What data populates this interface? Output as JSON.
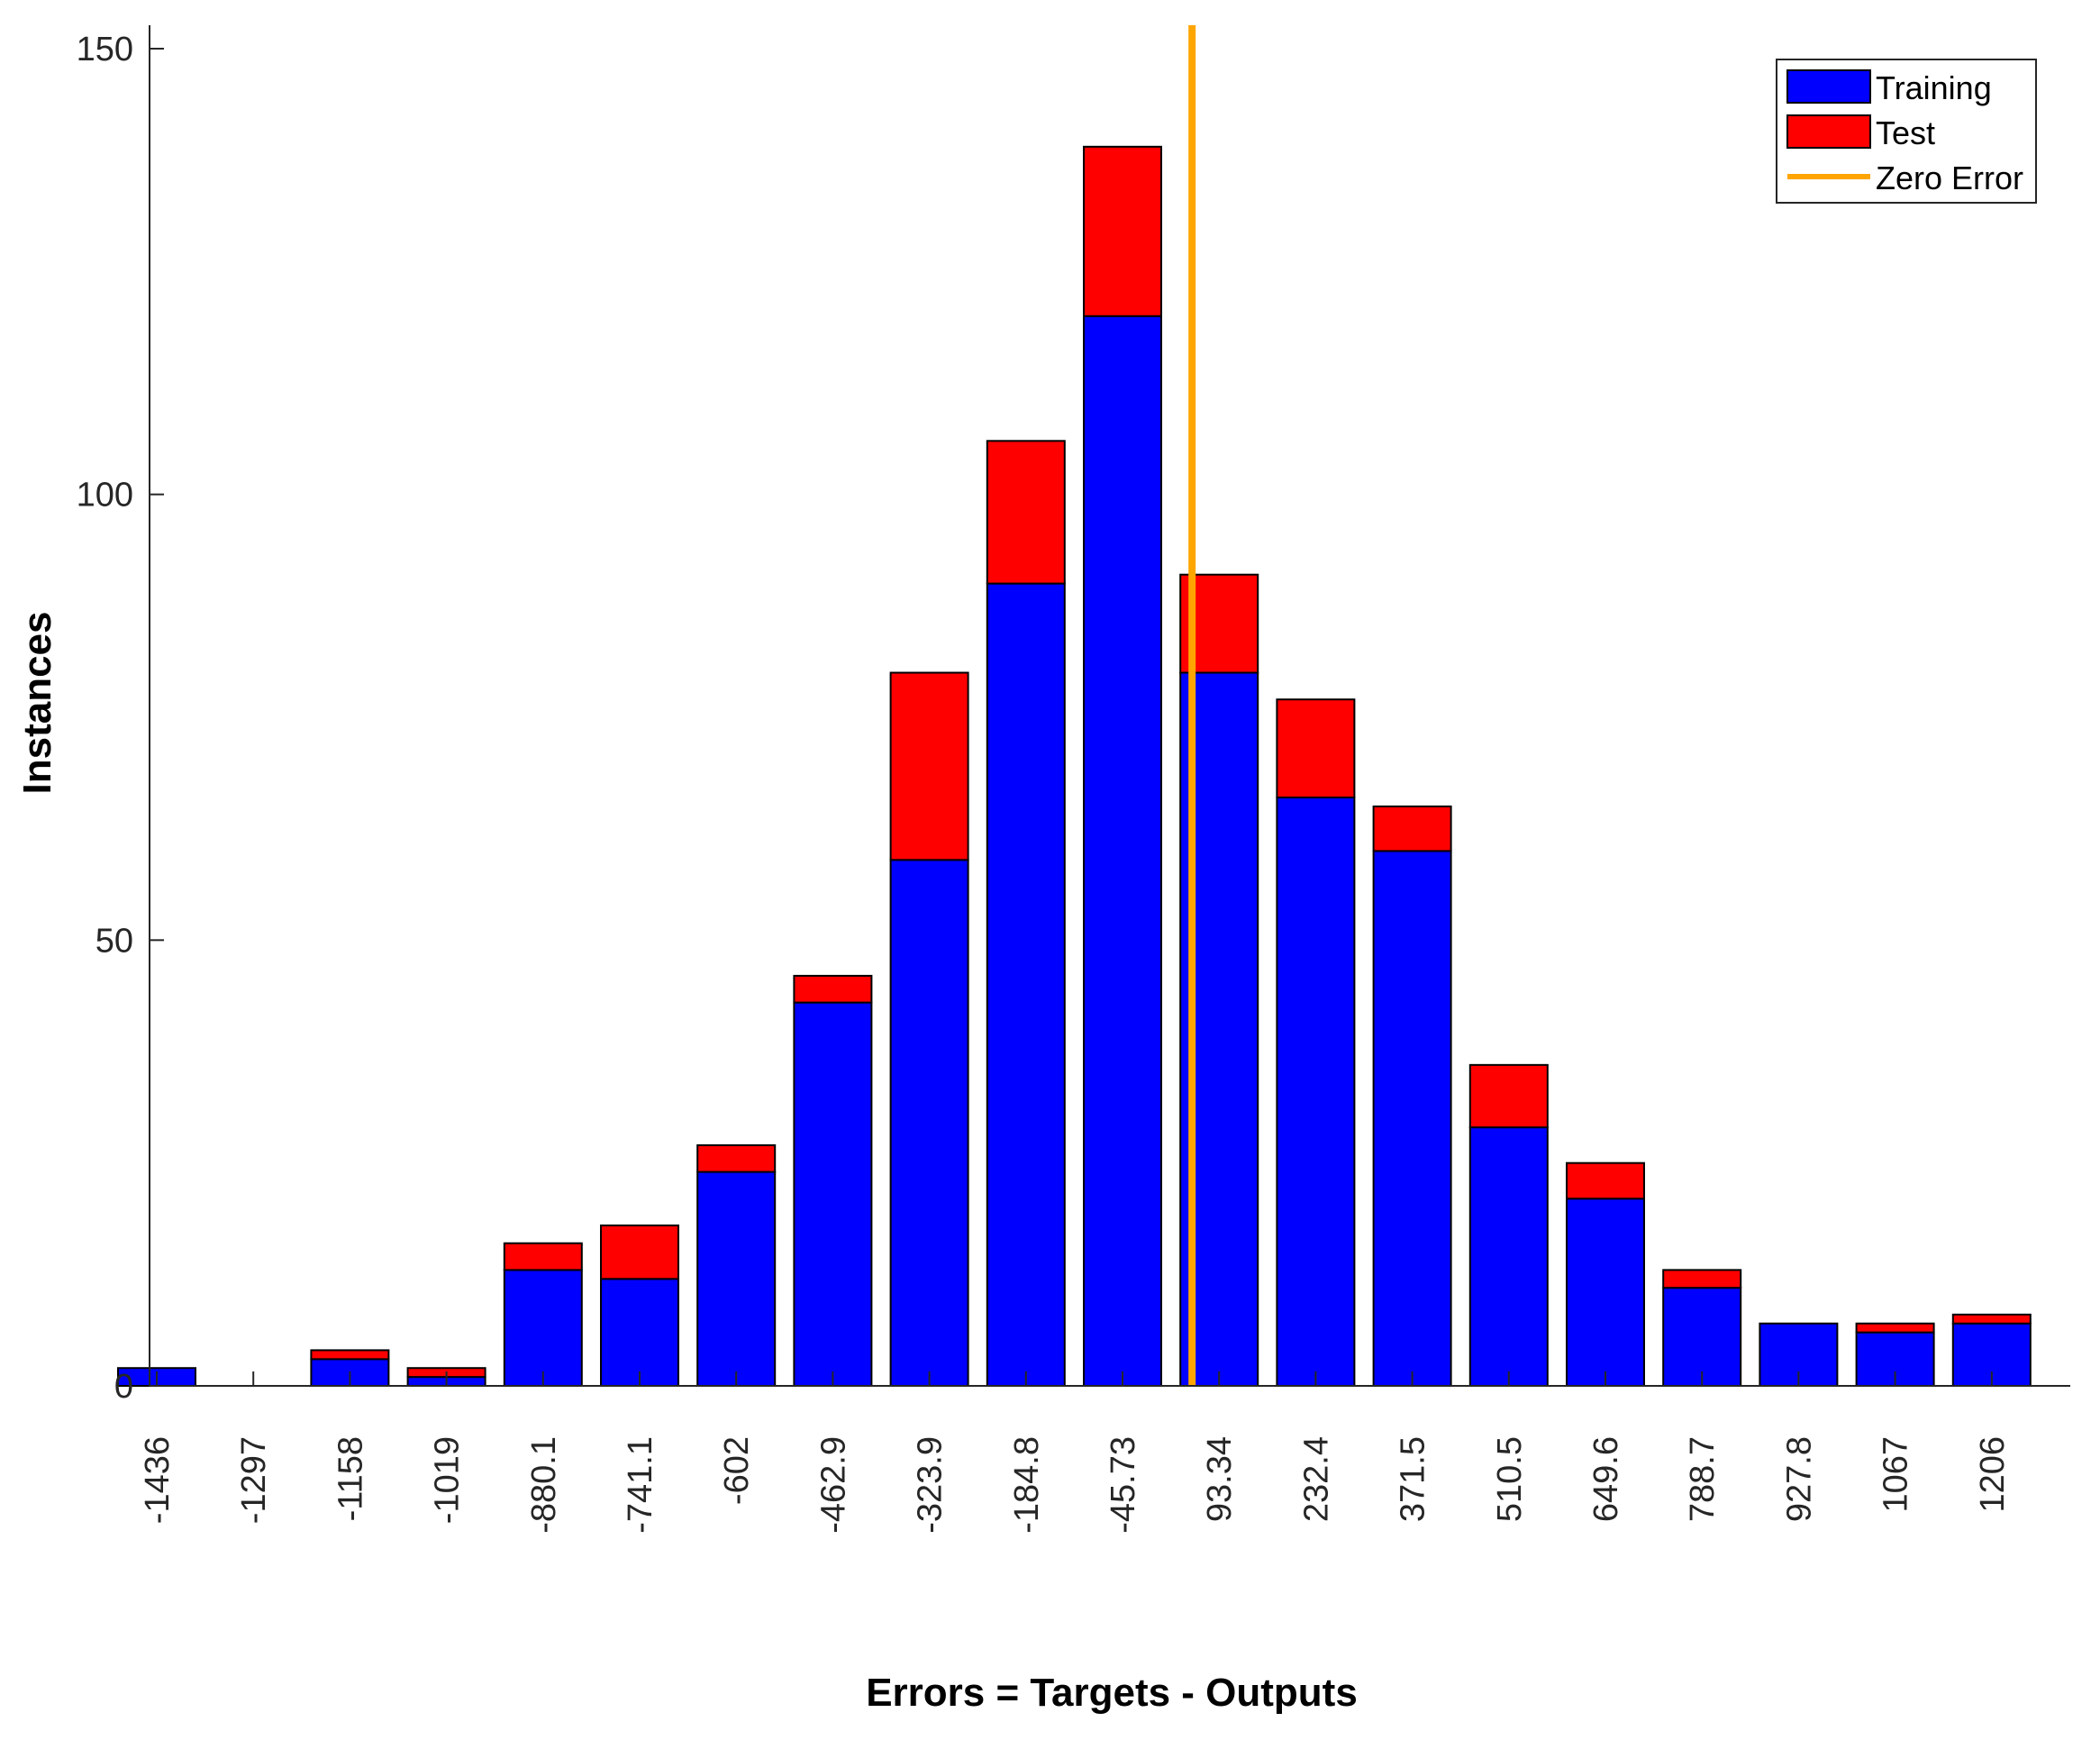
{
  "chart_data": {
    "type": "bar",
    "stacked": true,
    "title": "",
    "xlabel": "Errors = Targets - Outputs",
    "ylabel": "Instances",
    "ylim": [
      0,
      150
    ],
    "yticks": [
      0,
      50,
      100,
      150
    ],
    "categories": [
      "-1436",
      "-1297",
      "-1158",
      "-1019",
      "-880.1",
      "-741.1",
      "-602",
      "-462.9",
      "-323.9",
      "-184.8",
      "-45.73",
      "93.34",
      "232.4",
      "371.5",
      "510.5",
      "649.6",
      "788.7",
      "927.8",
      "1067",
      "1206"
    ],
    "series": [
      {
        "name": "Training",
        "color": "#0000ff",
        "values": [
          2,
          0,
          3,
          1,
          13,
          12,
          24,
          43,
          59,
          90,
          120,
          80,
          66,
          60,
          29,
          21,
          11,
          7,
          6,
          7
        ]
      },
      {
        "name": "Test",
        "color": "#ff0000",
        "values": [
          0,
          0,
          1,
          1,
          3,
          6,
          3,
          3,
          21,
          16,
          19,
          11,
          11,
          5,
          7,
          4,
          2,
          0,
          1,
          1
        ]
      }
    ],
    "zero_error": {
      "name": "Zero Error",
      "color": "#ffa500",
      "position_category_index": 10.72
    },
    "legend": {
      "position": "top-right",
      "entries": [
        "Training",
        "Test",
        "Zero Error"
      ]
    },
    "grid": false
  }
}
